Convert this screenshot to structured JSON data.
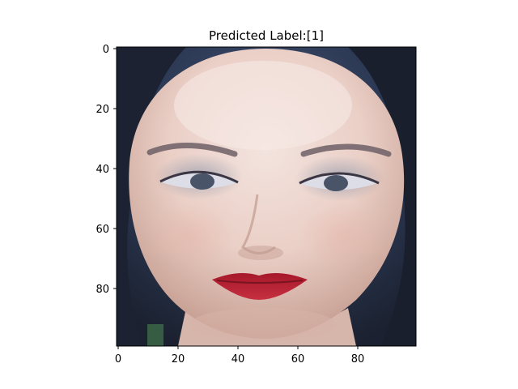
{
  "figure": {
    "title": "Predicted Label:[1]"
  },
  "axes": {
    "x_ticks": [
      "0",
      "20",
      "40",
      "60",
      "80"
    ],
    "y_ticks": [
      "0",
      "20",
      "40",
      "60",
      "80"
    ]
  },
  "colors": {
    "background_top": "#2f3f5a",
    "background_dark": "#1e2433",
    "skin_light": "#efdcd6",
    "skin_shadow": "#c8a79b",
    "hair": "#1a1f2e",
    "lips": "#b01f2a",
    "eyes": "#5a6a80"
  }
}
